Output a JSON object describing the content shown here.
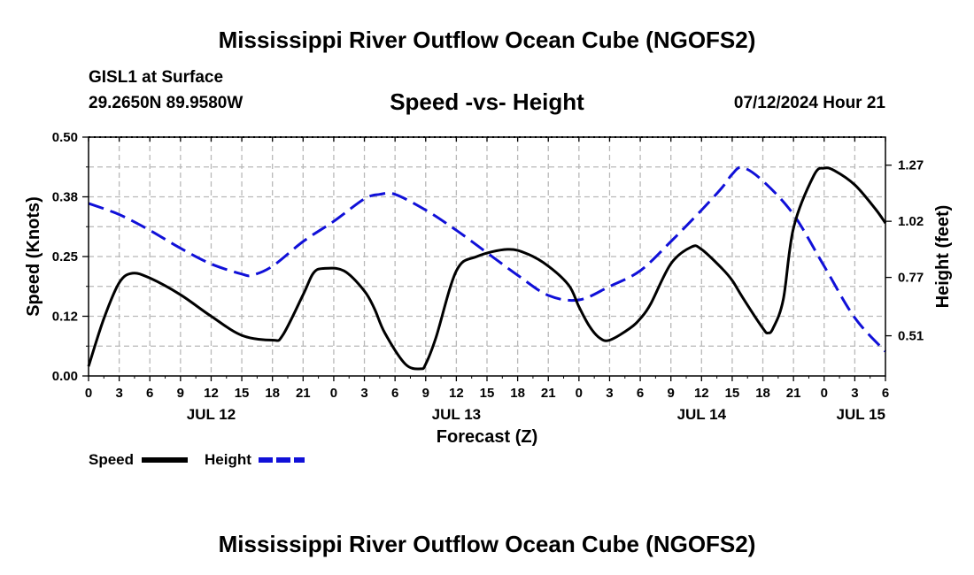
{
  "header": {
    "title": "Mississippi River Outflow Ocean Cube (NGOFS2)",
    "station": "GISL1 at Surface",
    "coordinates": "29.2650N  89.9580W",
    "subtitle": "Speed -vs- Height",
    "datetime": "07/12/2024 Hour 21"
  },
  "footer": {
    "title": "Mississippi River Outflow Ocean Cube (NGOFS2)"
  },
  "colors": {
    "speed": "#000000",
    "height": "#1010d8",
    "grid": "#b8b8b8"
  },
  "chart_data": {
    "type": "line",
    "title": "Speed -vs- Height",
    "xlabel": "Forecast (Z)",
    "ylabel_left": "Speed (Knots)",
    "ylabel_right": "Height (feet)",
    "x_unit": "hours since 07/12/2024 00Z",
    "xlim": [
      0,
      78
    ],
    "ylim_left": [
      0.0,
      0.5
    ],
    "ylim_right": [
      0.331,
      1.395
    ],
    "grid": true,
    "x_ticks": [
      0,
      3,
      6,
      9,
      12,
      15,
      18,
      21,
      24,
      27,
      30,
      33,
      36,
      39,
      42,
      45,
      48,
      51,
      54,
      57,
      60,
      63,
      66,
      69,
      72,
      75,
      78
    ],
    "x_tick_labels": [
      "0",
      "3",
      "6",
      "9",
      "12",
      "15",
      "18",
      "21",
      "0",
      "3",
      "6",
      "9",
      "12",
      "15",
      "18",
      "21",
      "0",
      "3",
      "6",
      "9",
      "12",
      "15",
      "18",
      "21",
      "0",
      "3",
      "6"
    ],
    "day_labels": [
      {
        "x": 12,
        "label": "JUL 12"
      },
      {
        "x": 36,
        "label": "JUL 13"
      },
      {
        "x": 60,
        "label": "JUL 14"
      },
      {
        "x": 78,
        "label": "JUL 15"
      }
    ],
    "y_ticks_left": [
      0.0,
      0.125,
      0.25,
      0.375,
      0.5
    ],
    "y_tick_labels_left": [
      "0.00",
      "0.12",
      "0.25",
      "0.38",
      "0.50"
    ],
    "y_ticks_right": [
      0.51,
      0.77,
      1.02,
      1.27
    ],
    "y_tick_labels_right": [
      "0.51",
      "0.77",
      "1.02",
      "1.27"
    ],
    "legend": [
      {
        "name": "Speed",
        "style": "solid"
      },
      {
        "name": "Height",
        "style": "dashed"
      }
    ],
    "series": [
      {
        "name": "Speed",
        "axis": "left",
        "style": "solid",
        "x": [
          0,
          1.5,
          3,
          4.3,
          6,
          9,
          12,
          15,
          18,
          19,
          21,
          22,
          23,
          25,
          27,
          28,
          29,
          31,
          32.5,
          33,
          34,
          36,
          38,
          41,
          43,
          45,
          47,
          48,
          49,
          50,
          51,
          53,
          54,
          55,
          57,
          59,
          60,
          62,
          63,
          64,
          66,
          66.5,
          67,
          68,
          69,
          71,
          72,
          73,
          75,
          77,
          78
        ],
        "y": [
          0.02,
          0.12,
          0.195,
          0.215,
          0.205,
          0.17,
          0.125,
          0.085,
          0.075,
          0.085,
          0.17,
          0.215,
          0.225,
          0.22,
          0.178,
          0.14,
          0.09,
          0.025,
          0.015,
          0.025,
          0.08,
          0.22,
          0.25,
          0.265,
          0.255,
          0.23,
          0.19,
          0.145,
          0.105,
          0.08,
          0.075,
          0.1,
          0.12,
          0.15,
          0.235,
          0.27,
          0.265,
          0.225,
          0.2,
          0.165,
          0.1,
          0.09,
          0.1,
          0.16,
          0.31,
          0.42,
          0.435,
          0.43,
          0.4,
          0.35,
          0.32
        ]
      },
      {
        "name": "Height",
        "axis": "right",
        "style": "dashed",
        "x": [
          0,
          3,
          6,
          9,
          12,
          15,
          16,
          18,
          21,
          24,
          27,
          28.5,
          30,
          33,
          36,
          39,
          42,
          45,
          48,
          51,
          54,
          57,
          60,
          62,
          63,
          64,
          66,
          69,
          72,
          75,
          78
        ],
        "y": [
          1.1,
          1.05,
          0.98,
          0.9,
          0.83,
          0.785,
          0.78,
          0.82,
          0.93,
          1.02,
          1.12,
          1.14,
          1.14,
          1.07,
          0.98,
          0.88,
          0.78,
          0.69,
          0.67,
          0.73,
          0.8,
          0.93,
          1.07,
          1.17,
          1.23,
          1.26,
          1.2,
          1.05,
          0.82,
          0.59,
          0.44
        ]
      }
    ]
  }
}
